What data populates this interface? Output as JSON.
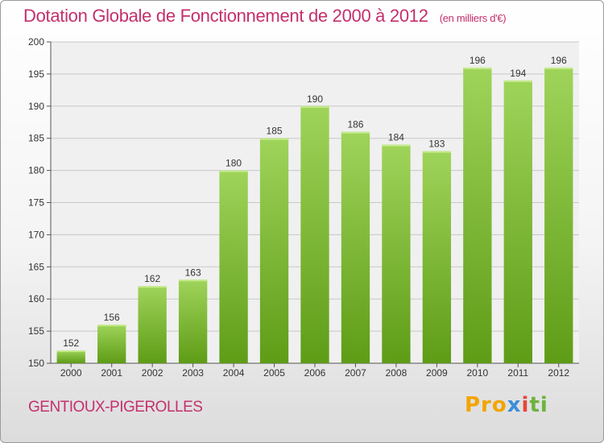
{
  "title": "Dotation Globale de Fonctionnement de 2000 à 2012",
  "unit_label": "(en milliers d'€)",
  "commune": "GENTIOUX-PIGEROLLES",
  "logo": {
    "part1": "Pro",
    "part2": "x",
    "part3": "i",
    "part4": "ti"
  },
  "colors": {
    "bar_top": "#9fd45a",
    "bar_bottom": "#5e9c16",
    "title": "#c4306c"
  },
  "chart_data": {
    "type": "bar",
    "title": "Dotation Globale de Fonctionnement de 2000 à 2012",
    "xlabel": "",
    "ylabel": "",
    "categories": [
      "2000",
      "2001",
      "2002",
      "2003",
      "2004",
      "2005",
      "2006",
      "2007",
      "2008",
      "2009",
      "2010",
      "2011",
      "2012"
    ],
    "values": [
      152,
      156,
      162,
      163,
      180,
      185,
      190,
      186,
      184,
      183,
      196,
      194,
      196
    ],
    "ylim": [
      150,
      200
    ],
    "yticks": [
      150,
      155,
      160,
      165,
      170,
      175,
      180,
      185,
      190,
      195,
      200
    ],
    "grid": true
  }
}
